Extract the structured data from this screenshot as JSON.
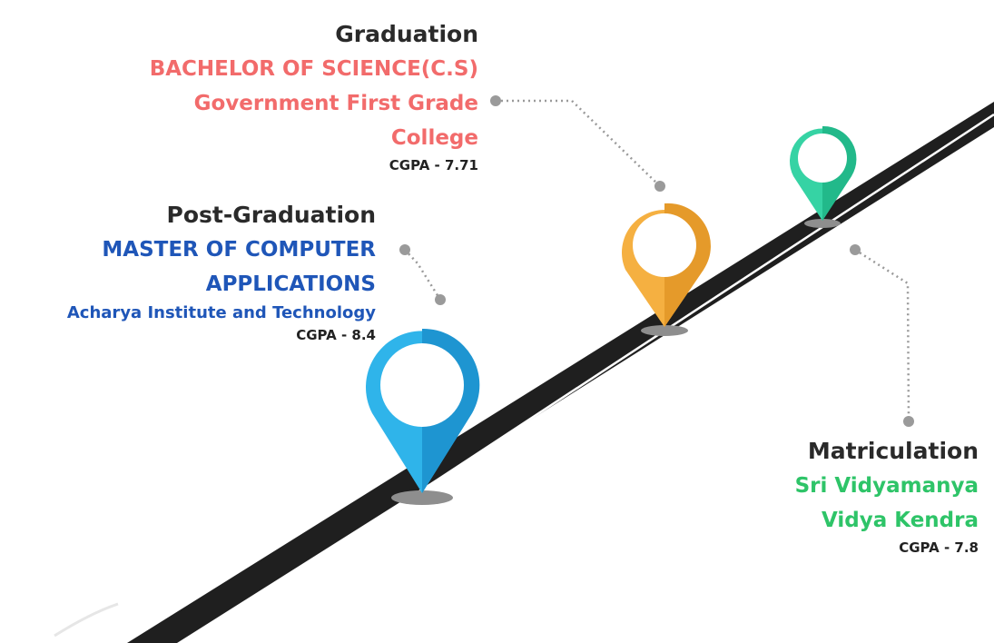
{
  "colors": {
    "road": "#1f1f1f",
    "road_line": "#ffffff",
    "connector": "#9a9a9a",
    "pin_shadow": "#8e8e8e",
    "graduation_accent": "#f26b6b",
    "postgrad_accent": "#1f56b8",
    "matric_accent": "#2ec468",
    "pin_orange": "#f5b041",
    "pin_blue": "#2fb4ea",
    "pin_teal": "#36d3a4",
    "text_dark": "#2a2a2a"
  },
  "milestones": {
    "graduation": {
      "heading": "Graduation",
      "degree": "BACHELOR OF SCIENCE(C.S)",
      "institution_line1": "Government First Grade",
      "institution_line2": "College",
      "cgpa": "CGPA - 7.71",
      "pin_color": "orange"
    },
    "postgrad": {
      "heading": "Post-Graduation",
      "degree_line1": "MASTER OF COMPUTER",
      "degree_line2": "APPLICATIONS",
      "institution": "Acharya Institute and Technology",
      "cgpa": "CGPA - 8.4",
      "pin_color": "blue"
    },
    "matriculation": {
      "heading": "Matriculation",
      "institution_line1": "Sri Vidyamanya",
      "institution_line2": "Vidya Kendra",
      "cgpa": "CGPA - 7.8",
      "pin_color": "teal"
    }
  },
  "icons": [
    "map-pin-icon",
    "map-pin-icon",
    "map-pin-icon"
  ]
}
